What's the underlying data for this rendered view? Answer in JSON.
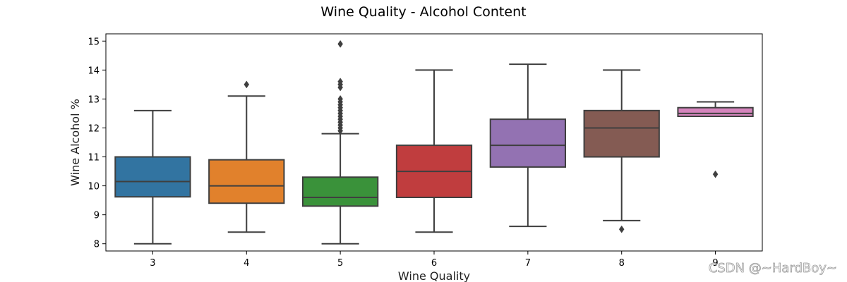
{
  "chart_data": {
    "type": "box",
    "title": "Wine Quality - Alcohol Content",
    "xlabel": "Wine Quality",
    "ylabel": "Wine Alcohol %",
    "ylim": [
      7.75,
      15.25
    ],
    "yticks": [
      8,
      9,
      10,
      11,
      12,
      13,
      14,
      15
    ],
    "categories": [
      "3",
      "4",
      "5",
      "6",
      "7",
      "8",
      "9"
    ],
    "boxes": [
      {
        "category": "3",
        "whisker_low": 8.0,
        "q1": 9.62,
        "median": 10.15,
        "q3": 11.0,
        "whisker_high": 12.6,
        "outliers": [],
        "color": "#3274a1"
      },
      {
        "category": "4",
        "whisker_low": 8.4,
        "q1": 9.4,
        "median": 10.0,
        "q3": 10.9,
        "whisker_high": 13.1,
        "outliers": [
          13.5
        ],
        "color": "#e1812c"
      },
      {
        "category": "5",
        "whisker_low": 8.0,
        "q1": 9.3,
        "median": 9.6,
        "q3": 10.3,
        "whisker_high": 11.8,
        "outliers": [
          11.9,
          12.0,
          12.1,
          12.2,
          12.3,
          12.4,
          12.5,
          12.6,
          12.7,
          12.8,
          12.9,
          13.0,
          13.4,
          13.5,
          13.6,
          14.9
        ],
        "color": "#3a923a"
      },
      {
        "category": "6",
        "whisker_low": 8.4,
        "q1": 9.6,
        "median": 10.5,
        "q3": 11.4,
        "whisker_high": 14.0,
        "outliers": [],
        "color": "#c03d3e"
      },
      {
        "category": "7",
        "whisker_low": 8.6,
        "q1": 10.65,
        "median": 11.4,
        "q3": 12.3,
        "whisker_high": 14.2,
        "outliers": [],
        "color": "#9372b2"
      },
      {
        "category": "8",
        "whisker_low": 8.8,
        "q1": 11.0,
        "median": 12.0,
        "q3": 12.6,
        "whisker_high": 14.0,
        "outliers": [
          8.5
        ],
        "color": "#845b53"
      },
      {
        "category": "9",
        "whisker_low": 12.4,
        "q1": 12.4,
        "median": 12.5,
        "q3": 12.7,
        "whisker_high": 12.9,
        "outliers": [
          10.4
        ],
        "color": "#d684bd"
      }
    ],
    "line_color": "#3f3f3f",
    "grid": false,
    "legend": "none"
  },
  "watermark": "CSDN @~HardBoy~"
}
